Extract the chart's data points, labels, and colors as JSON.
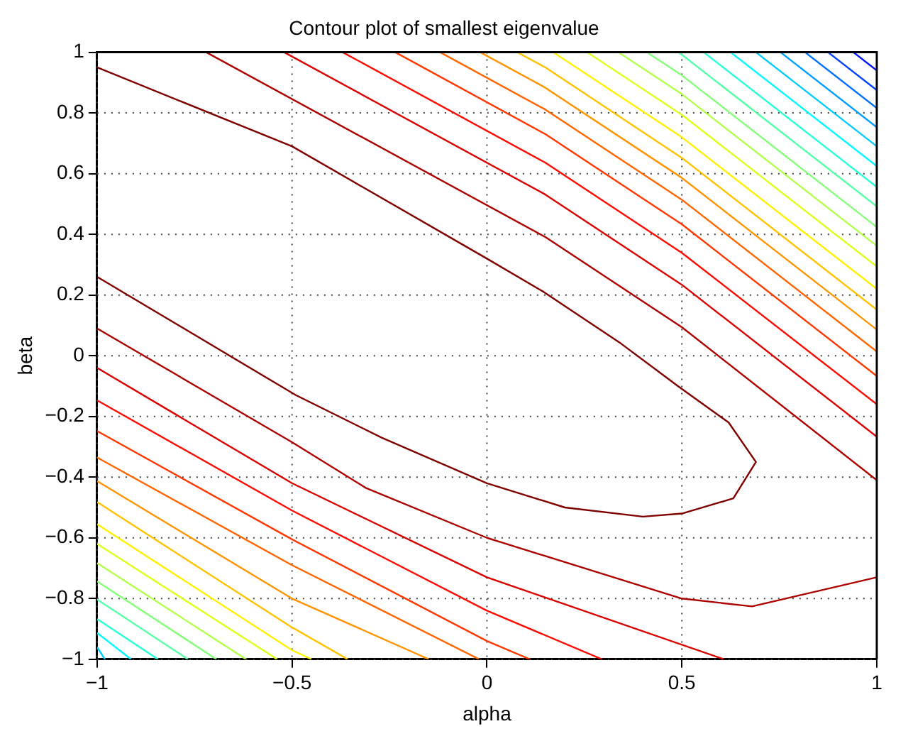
{
  "chart_data": {
    "type": "line",
    "title": "Contour plot of smallest eigenvalue",
    "xlabel": "alpha",
    "ylabel": "beta",
    "xlim": [
      -1,
      1
    ],
    "ylim": [
      -1,
      1
    ],
    "xticks": [
      {
        "value": -1,
        "label": "−1"
      },
      {
        "value": -0.5,
        "label": "−0.5"
      },
      0,
      0.5,
      1
    ],
    "yticks": [
      {
        "value": -1,
        "label": "−1"
      },
      {
        "value": -0.8,
        "label": "−0.8"
      },
      {
        "value": -0.6,
        "label": "−0.6"
      },
      {
        "value": -0.4,
        "label": "−0.4"
      },
      {
        "value": -0.2,
        "label": "−0.2"
      },
      0,
      0.2,
      0.4,
      0.6,
      0.8,
      1
    ],
    "grid": true,
    "legend": false,
    "marker": "none",
    "line_style": "solid",
    "series": [
      {
        "color": "#800000",
        "x": [
          -1,
          -0.5,
          0,
          0.146,
          0.344,
          0.49,
          0.62,
          0.69,
          0.632,
          0.5,
          0.4,
          0.2,
          0,
          -0.27,
          -0.49,
          -1
        ],
        "values": [
          0.95,
          0.69,
          0.32,
          0.21,
          0.04,
          -0.1,
          -0.22,
          -0.35,
          -0.47,
          -0.52,
          -0.53,
          -0.5,
          -0.42,
          -0.27,
          -0.13,
          0.26
        ]
      },
      {
        "color": "#ad0000",
        "x": [
          -0.72,
          0.15,
          0.5,
          1
        ],
        "values": [
          1,
          0.391,
          0.094,
          -0.41
        ]
      },
      {
        "color": "#db0000",
        "x": [
          -0.52,
          0.15,
          0.5,
          1
        ],
        "values": [
          1,
          0.531,
          0.234,
          -0.267
        ]
      },
      {
        "color": "#ff0a00",
        "x": [
          -0.37,
          0.15,
          0.5,
          1
        ],
        "values": [
          1,
          0.636,
          0.339,
          -0.16
        ]
      },
      {
        "color": "#ff3800",
        "x": [
          -0.235,
          0.15,
          0.5,
          1
        ],
        "values": [
          1,
          0.73,
          0.433,
          -0.067
        ]
      },
      {
        "color": "#ff6600",
        "x": [
          -0.12,
          0.15,
          0.5,
          1
        ],
        "values": [
          1,
          0.811,
          0.514,
          0.014
        ]
      },
      {
        "color": "#ff9400",
        "x": [
          -0.017,
          0.15,
          0.5,
          1
        ],
        "values": [
          1,
          0.883,
          0.586,
          0.086
        ]
      },
      {
        "color": "#ffc200",
        "x": [
          0.078,
          0.15,
          0.5,
          1
        ],
        "values": [
          1,
          0.95,
          0.652,
          0.152
        ]
      },
      {
        "color": "#fff000",
        "x": [
          0.17,
          0.5,
          1
        ],
        "values": [
          1,
          0.72,
          0.22
        ]
      },
      {
        "color": "#e0ff1f",
        "x": [
          0.257,
          0.5,
          1
        ],
        "values": [
          1,
          0.794,
          0.294
        ]
      },
      {
        "color": "#b3ff4d",
        "x": [
          0.337,
          0.5,
          1
        ],
        "values": [
          1,
          0.862,
          0.362
        ]
      },
      {
        "color": "#85ff7a",
        "x": [
          0.41,
          0.5,
          1
        ],
        "values": [
          1,
          0.924,
          0.424
        ]
      },
      {
        "color": "#57ffa8",
        "x": [
          0.49,
          0.5,
          1
        ],
        "values": [
          1,
          0.992,
          0.492
        ]
      },
      {
        "color": "#29ffd6",
        "x": [
          0.556,
          1
        ],
        "values": [
          1,
          0.556
        ]
      },
      {
        "color": "#00faff",
        "x": [
          0.625,
          1
        ],
        "values": [
          1,
          0.625
        ]
      },
      {
        "color": "#00ccff",
        "x": [
          0.69,
          1
        ],
        "values": [
          1,
          0.69
        ]
      },
      {
        "color": "#009eff",
        "x": [
          0.753,
          1
        ],
        "values": [
          1,
          0.753
        ]
      },
      {
        "color": "#0070ff",
        "x": [
          0.816,
          1
        ],
        "values": [
          1,
          0.816
        ]
      },
      {
        "color": "#0042ff",
        "x": [
          0.875,
          1
        ],
        "values": [
          1,
          0.875
        ]
      },
      {
        "color": "#0014ff",
        "x": [
          0.94,
          1
        ],
        "values": [
          1,
          0.94
        ]
      },
      {
        "color": "#ad0000",
        "x": [
          -1,
          -0.5,
          -0.31,
          0,
          0.5,
          0.68,
          1
        ],
        "values": [
          0.09,
          -0.285,
          -0.436,
          -0.6,
          -0.8,
          -0.826,
          -0.73
        ]
      },
      {
        "color": "#db0000",
        "x": [
          -1,
          -0.5,
          0,
          0.608
        ],
        "values": [
          -0.04,
          -0.42,
          -0.73,
          -1
        ]
      },
      {
        "color": "#ff0a00",
        "x": [
          -1,
          -0.5,
          0,
          0.295
        ],
        "values": [
          -0.147,
          -0.51,
          -0.84,
          -1
        ]
      },
      {
        "color": "#ff3800",
        "x": [
          -1,
          -0.5,
          0,
          0.11
        ],
        "values": [
          -0.248,
          -0.605,
          -0.94,
          -1
        ]
      },
      {
        "color": "#ff6600",
        "x": [
          -1,
          -0.5,
          -0.02
        ],
        "values": [
          -0.335,
          -0.69,
          -1
        ]
      },
      {
        "color": "#ff9400",
        "x": [
          -1,
          -0.5,
          -0.149
        ],
        "values": [
          -0.413,
          -0.8,
          -1
        ]
      },
      {
        "color": "#ffc200",
        "x": [
          -1,
          -0.5,
          -0.357
        ],
        "values": [
          -0.482,
          -0.895,
          -1
        ]
      },
      {
        "color": "#fff000",
        "x": [
          -1,
          -0.5,
          -0.45
        ],
        "values": [
          -0.555,
          -0.97,
          -1
        ]
      },
      {
        "color": "#e0ff1f",
        "x": [
          -1,
          -0.538
        ],
        "values": [
          -0.62,
          -1
        ]
      },
      {
        "color": "#b3ff4d",
        "x": [
          -1,
          -0.618
        ],
        "values": [
          -0.683,
          -1
        ]
      },
      {
        "color": "#85ff7a",
        "x": [
          -1,
          -0.694
        ],
        "values": [
          -0.743,
          -1
        ]
      },
      {
        "color": "#57ffa8",
        "x": [
          -1,
          -0.767
        ],
        "values": [
          -0.803,
          -1
        ]
      },
      {
        "color": "#29ffd6",
        "x": [
          -1,
          -0.844
        ],
        "values": [
          -0.867,
          -1
        ]
      },
      {
        "color": "#00faff",
        "x": [
          -1,
          -0.913
        ],
        "values": [
          -0.913,
          -1
        ]
      },
      {
        "color": "#00ccff",
        "x": [
          -1,
          -0.98
        ],
        "values": [
          -0.96,
          -1
        ]
      }
    ]
  }
}
